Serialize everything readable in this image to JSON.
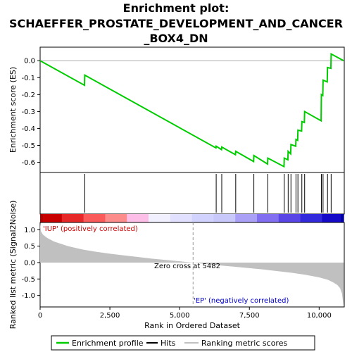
{
  "title_lines": [
    "Enrichment plot:",
    "SCHAEFFER_PROSTATE_DEVELOPMENT_AND_CANCER",
    "_BOX4_DN"
  ],
  "chart_data": {
    "type": "line",
    "x_max": 10900,
    "es_panel": {
      "ylabel": "Enrichment score (ES)",
      "ylim": [
        -0.66,
        0.08
      ],
      "yticks": [
        0.0,
        -0.1,
        -0.2,
        -0.3,
        -0.4,
        -0.5,
        -0.6
      ],
      "ytick_labels": [
        "0.0",
        "-0.1",
        "-0.2",
        "-0.3",
        "-0.4",
        "-0.5",
        "-0.6"
      ],
      "series": [
        {
          "name": "Enrichment profile",
          "color": "#00cc00",
          "x": [
            0,
            1590,
            1600,
            6300,
            6310,
            6500,
            6510,
            7000,
            7010,
            7650,
            7660,
            8150,
            8160,
            8740,
            8750,
            8880,
            8890,
            8980,
            8990,
            9160,
            9170,
            9230,
            9240,
            9370,
            9380,
            9470,
            9480,
            10070,
            10080,
            10130,
            10140,
            10290,
            10300,
            10420,
            10430,
            10880
          ],
          "y": [
            0.0,
            -0.145,
            -0.085,
            -0.515,
            -0.505,
            -0.525,
            -0.51,
            -0.555,
            -0.535,
            -0.595,
            -0.56,
            -0.61,
            -0.575,
            -0.625,
            -0.575,
            -0.585,
            -0.535,
            -0.55,
            -0.495,
            -0.505,
            -0.465,
            -0.47,
            -0.41,
            -0.415,
            -0.36,
            -0.365,
            -0.3,
            -0.355,
            -0.2,
            -0.205,
            -0.115,
            -0.125,
            -0.04,
            -0.045,
            0.04,
            0.0
          ]
        }
      ]
    },
    "hits": {
      "name": "Hits",
      "x": [
        1600,
        6310,
        6510,
        7010,
        7660,
        8160,
        8750,
        8890,
        8990,
        9170,
        9240,
        9380,
        9480,
        10080,
        10140,
        10300,
        10430
      ]
    },
    "ranked_metric": {
      "name": "Ranking metric scores",
      "ylabel": "Ranked list metric (Signal2Noise)",
      "xlabel": "Rank in Ordered Dataset",
      "ylim": [
        -1.35,
        1.22
      ],
      "yticks": [
        1.0,
        0.5,
        0.0,
        -0.5,
        -1.0
      ],
      "ytick_labels": [
        "1.0",
        "0.5",
        "0.0",
        "-0.5",
        "-1.0"
      ],
      "xticks": [
        0,
        2500,
        5000,
        7500,
        10000
      ],
      "xtick_labels": [
        "0",
        "2,500",
        "5,000",
        "7,500",
        "10,000"
      ],
      "x": [
        0,
        30,
        100,
        250,
        500,
        1000,
        1500,
        2000,
        2500,
        3000,
        3500,
        4000,
        4500,
        5000,
        5482,
        6000,
        6500,
        7000,
        7500,
        8000,
        8500,
        9000,
        9500,
        10000,
        10300,
        10500,
        10650,
        10750,
        10820,
        10880
      ],
      "y": [
        1.2,
        0.95,
        0.85,
        0.75,
        0.64,
        0.5,
        0.4,
        0.33,
        0.27,
        0.22,
        0.17,
        0.12,
        0.08,
        0.04,
        0.0,
        -0.05,
        -0.09,
        -0.13,
        -0.17,
        -0.21,
        -0.26,
        -0.31,
        -0.37,
        -0.45,
        -0.52,
        -0.6,
        -0.68,
        -0.78,
        -0.95,
        -1.35
      ],
      "zero_cross_label": "Zero cross at 5482",
      "zero_cross": 5482,
      "pos_label": "'IUP' (positively correlated)",
      "neg_label": "'EP' (negatively correlated)"
    },
    "legend": {
      "placement": "bottom",
      "items": [
        {
          "label": "Enrichment profile",
          "color": "#00cc00"
        },
        {
          "label": "Hits",
          "color": "#000000"
        },
        {
          "label": "Ranking metric scores",
          "color": "#c0c0c0"
        }
      ]
    }
  }
}
